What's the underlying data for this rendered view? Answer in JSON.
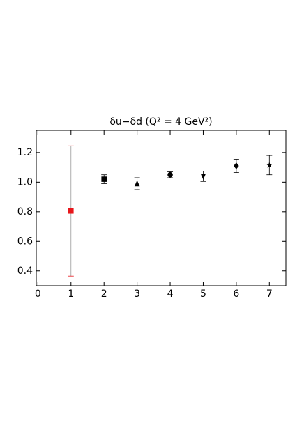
{
  "chart_data": {
    "type": "scatter",
    "title": "δu−δd (Q² = 4 GeV²)",
    "x": [
      1,
      2,
      3,
      4,
      5,
      6,
      7
    ],
    "values": [
      0.805,
      1.02,
      0.99,
      1.05,
      1.04,
      1.11,
      1.115
    ],
    "errors": [
      0.44,
      0.03,
      0.04,
      0.02,
      0.035,
      0.045,
      0.065
    ],
    "markers": [
      "square",
      "square",
      "triangle",
      "circle",
      "triangle-down",
      "diamond",
      "star"
    ],
    "colors": [
      "#e8161b",
      "#000000",
      "#000000",
      "#000000",
      "#000000",
      "#000000",
      "#000000"
    ],
    "xlim": [
      -0.05,
      7.5
    ],
    "xticks": [
      0,
      1,
      2,
      3,
      4,
      5,
      6,
      7
    ],
    "ylim": [
      0.3,
      1.35
    ],
    "yticks": [
      0.4,
      0.6,
      0.8,
      {
        "value": 1,
        "label": "1.0"
      },
      1.2
    ]
  }
}
